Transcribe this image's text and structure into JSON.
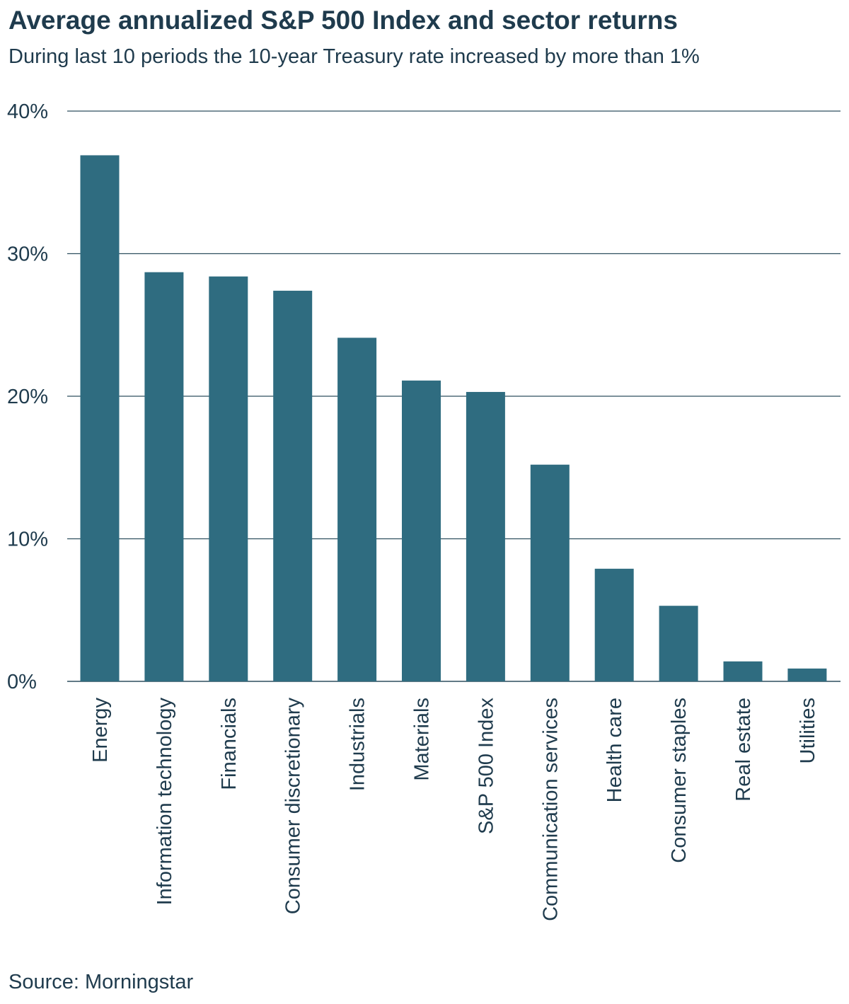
{
  "chart_data": {
    "type": "bar",
    "title": "Average annualized S&P 500 Index and sector returns",
    "subtitle": "During last 10 periods the 10-year Treasury rate increased by more than 1%",
    "source": "Source: Morningstar",
    "categories": [
      "Energy",
      "Information technology",
      "Financials",
      "Consumer discretionary",
      "Industrials",
      "Materials",
      "S&P 500 Index",
      "Communication services",
      "Health care",
      "Consumer staples",
      "Real estate",
      "Utilities"
    ],
    "values": [
      36.9,
      28.7,
      28.4,
      27.4,
      24.1,
      21.1,
      20.3,
      15.2,
      7.9,
      5.3,
      1.4,
      0.9
    ],
    "ylim": [
      0,
      40
    ],
    "yticks": [
      0,
      10,
      20,
      30,
      40
    ],
    "ytick_labels": [
      "0%",
      "10%",
      "20%",
      "30%",
      "40%"
    ],
    "xlabel": "",
    "ylabel": "",
    "grid": true,
    "legend": "none",
    "bar_color": "#2f6c80",
    "grid_color": "#2f4f5f"
  }
}
